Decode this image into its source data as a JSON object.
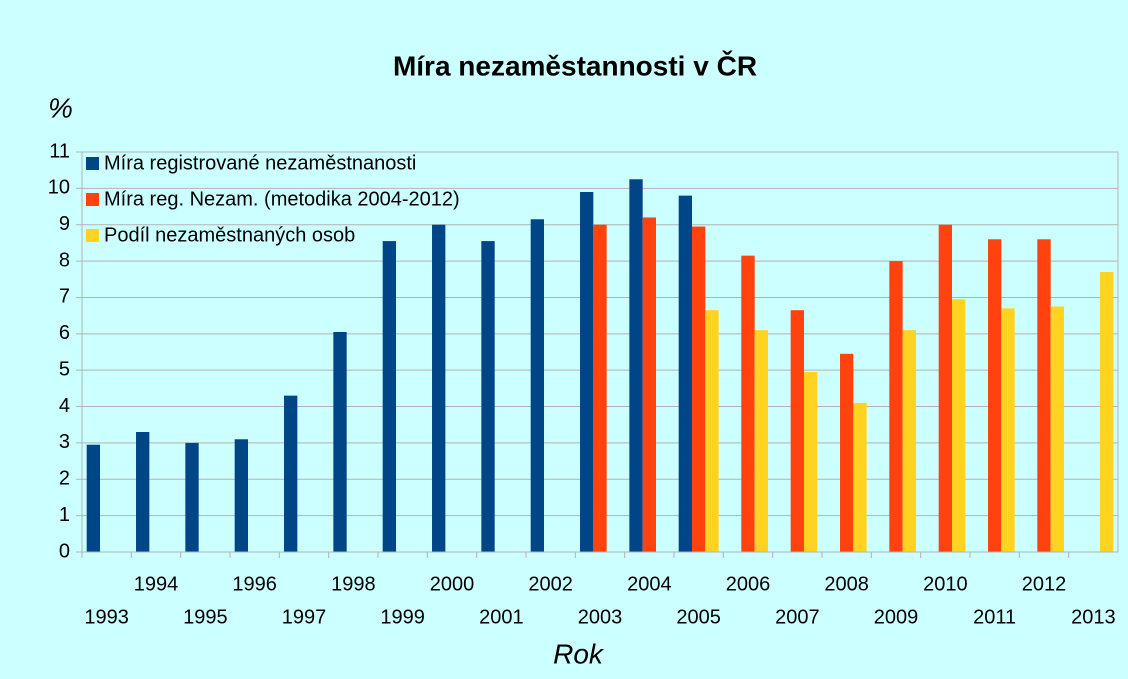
{
  "chart_data": {
    "type": "bar",
    "title": "Míra nezaměstannosti v ČR",
    "y_label": "%",
    "x_label": "Rok",
    "categories": [
      "1993",
      "1994",
      "1995",
      "1996",
      "1997",
      "1998",
      "1999",
      "2000",
      "2001",
      "2002",
      "2003",
      "2004",
      "2005",
      "2006",
      "2007",
      "2008",
      "2009",
      "2010",
      "2011",
      "2012",
      "2013"
    ],
    "series": [
      {
        "name": "Míra registrované nezaměstnanosti",
        "color": "#004586",
        "values": [
          2.95,
          3.3,
          3.0,
          3.1,
          4.3,
          6.05,
          8.55,
          9.0,
          8.55,
          9.15,
          9.9,
          10.25,
          9.8,
          null,
          null,
          null,
          null,
          null,
          null,
          null,
          null
        ]
      },
      {
        "name": "Míra reg. Nezam. (metodika 2004-2012)",
        "color": "#ff420e",
        "values": [
          null,
          null,
          null,
          null,
          null,
          null,
          null,
          null,
          null,
          null,
          9.0,
          9.2,
          8.95,
          8.15,
          6.65,
          5.45,
          8.0,
          9.0,
          8.6,
          8.6,
          null
        ]
      },
      {
        "name": "Podíl nezaměstnaných osob",
        "color": "#ffd320",
        "values": [
          null,
          null,
          null,
          null,
          null,
          null,
          null,
          null,
          null,
          null,
          null,
          null,
          6.65,
          6.1,
          4.95,
          4.1,
          6.1,
          6.95,
          6.7,
          6.75,
          7.7
        ]
      }
    ],
    "ylim": [
      0,
      11
    ],
    "yticks": [
      0,
      1,
      2,
      3,
      4,
      5,
      6,
      7,
      8,
      9,
      10,
      11
    ],
    "grid": true,
    "legend": "top-left"
  }
}
